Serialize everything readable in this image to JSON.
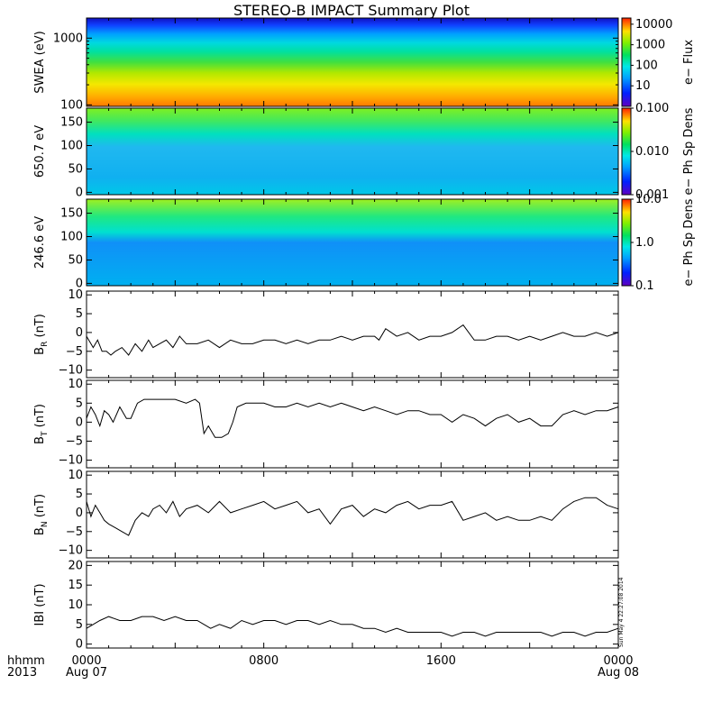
{
  "title": "STEREO-B IMPACT Summary Plot",
  "time_axis": {
    "corner_labels": [
      "hhmm",
      "2013"
    ],
    "ticks": [
      {
        "hhmm": "0000",
        "date": "Aug 07",
        "hour": 0
      },
      {
        "hhmm": "0800",
        "date": "",
        "hour": 8
      },
      {
        "hhmm": "1600",
        "date": "",
        "hour": 16
      },
      {
        "hhmm": "0000",
        "date": "Aug 08",
        "hour": 24
      }
    ],
    "range_hours": [
      0,
      24
    ]
  },
  "timestamp": "Sun May 4 22:27:08 2014",
  "colors": {
    "trace": "#000000",
    "frame": "#000000",
    "background": "#ffffff"
  },
  "chart_data": [
    {
      "type": "heatmap",
      "ylabel": "SWEA (eV)",
      "yscale": "log",
      "ylim": [
        95,
        2000
      ],
      "yticks": [
        {
          "v": 100,
          "label": "100"
        },
        {
          "v": 1000,
          "label": "1000"
        }
      ],
      "colorbar": {
        "label": "e− Flux",
        "scale": "log",
        "range": [
          1,
          20000
        ],
        "ticks": [
          {
            "v": 10,
            "label": "10"
          },
          {
            "v": 100,
            "label": "100"
          },
          {
            "v": 1000,
            "label": "1000"
          },
          {
            "v": 10000,
            "label": "10000"
          }
        ]
      }
    },
    {
      "type": "heatmap",
      "ylabel": "650.7 eV",
      "yscale": "linear",
      "ylim": [
        -5,
        180
      ],
      "yticks": [
        {
          "v": 0,
          "label": "0"
        },
        {
          "v": 50,
          "label": "50"
        },
        {
          "v": 100,
          "label": "100"
        },
        {
          "v": 150,
          "label": "150"
        }
      ],
      "colorbar": {
        "label": "e− Ph Sp Dens",
        "scale": "log",
        "range": [
          0.001,
          0.1
        ],
        "ticks": [
          {
            "v": 0.001,
            "label": "0.001"
          },
          {
            "v": 0.01,
            "label": "0.010"
          },
          {
            "v": 0.1,
            "label": "0.100"
          }
        ]
      }
    },
    {
      "type": "heatmap",
      "ylabel": "246.6 eV",
      "yscale": "linear",
      "ylim": [
        -5,
        180
      ],
      "yticks": [
        {
          "v": 0,
          "label": "0"
        },
        {
          "v": 50,
          "label": "50"
        },
        {
          "v": 100,
          "label": "100"
        },
        {
          "v": 150,
          "label": "150"
        }
      ],
      "colorbar": {
        "label": "e− Ph Sp Dens",
        "scale": "log",
        "range": [
          0.1,
          10
        ],
        "ticks": [
          {
            "v": 0.1,
            "label": "0.1"
          },
          {
            "v": 1,
            "label": "1.0"
          },
          {
            "v": 10,
            "label": "10.0"
          }
        ]
      }
    },
    {
      "type": "line",
      "ylabel_main": "B",
      "ylabel_sub": "R",
      "ylabel_unit": " (nT)",
      "ylim": [
        -12,
        11
      ],
      "yticks": [
        {
          "v": -10,
          "label": "−10"
        },
        {
          "v": -5,
          "label": "−5"
        },
        {
          "v": 0,
          "label": "0"
        },
        {
          "v": 5,
          "label": "5"
        },
        {
          "v": 10,
          "label": "10"
        }
      ],
      "x": [
        0,
        0.3,
        0.5,
        0.7,
        0.9,
        1.1,
        1.3,
        1.6,
        1.9,
        2.2,
        2.5,
        2.8,
        3.0,
        3.3,
        3.6,
        3.9,
        4.2,
        4.5,
        5.0,
        5.5,
        6.0,
        6.5,
        7.0,
        7.5,
        8.0,
        8.5,
        9.0,
        9.5,
        10.0,
        10.5,
        11.0,
        11.5,
        12.0,
        12.5,
        13.0,
        13.2,
        13.5,
        14.0,
        14.5,
        15.0,
        15.5,
        16.0,
        16.5,
        17.0,
        17.5,
        18.0,
        18.5,
        19.0,
        19.5,
        20.0,
        20.5,
        21.0,
        21.5,
        22.0,
        22.5,
        23.0,
        23.5,
        24.0
      ],
      "y": [
        -1,
        -4,
        -2,
        -5,
        -5,
        -6,
        -5,
        -4,
        -6,
        -3,
        -5,
        -2,
        -4,
        -3,
        -2,
        -4,
        -1,
        -3,
        -3,
        -2,
        -4,
        -2,
        -3,
        -3,
        -2,
        -2,
        -3,
        -2,
        -3,
        -2,
        -2,
        -1,
        -2,
        -1,
        -1,
        -2,
        1,
        -1,
        0,
        -2,
        -1,
        -1,
        0,
        2,
        -2,
        -2,
        -1,
        -1,
        -2,
        -1,
        -2,
        -1,
        0,
        -1,
        -1,
        0,
        -1,
        0
      ]
    },
    {
      "type": "line",
      "ylabel_main": "B",
      "ylabel_sub": "T",
      "ylabel_unit": " (nT)",
      "ylim": [
        -12,
        11
      ],
      "yticks": [
        {
          "v": -10,
          "label": "−10"
        },
        {
          "v": -5,
          "label": "−5"
        },
        {
          "v": 0,
          "label": "0"
        },
        {
          "v": 5,
          "label": "5"
        },
        {
          "v": 10,
          "label": "10"
        }
      ],
      "x": [
        0,
        0.2,
        0.4,
        0.6,
        0.8,
        1.0,
        1.2,
        1.5,
        1.8,
        2.0,
        2.3,
        2.6,
        3.0,
        3.5,
        4.0,
        4.5,
        4.9,
        5.1,
        5.3,
        5.5,
        5.8,
        6.1,
        6.4,
        6.6,
        6.8,
        7.2,
        7.6,
        8.0,
        8.5,
        9.0,
        9.5,
        10.0,
        10.5,
        11.0,
        11.5,
        12.0,
        12.5,
        13.0,
        13.5,
        14.0,
        14.5,
        15.0,
        15.5,
        16.0,
        16.5,
        17.0,
        17.5,
        18.0,
        18.5,
        19.0,
        19.5,
        20.0,
        20.5,
        21.0,
        21.5,
        22.0,
        22.5,
        23.0,
        23.5,
        24.0
      ],
      "y": [
        1,
        4,
        2,
        -1,
        3,
        2,
        0,
        4,
        1,
        1,
        5,
        6,
        6,
        6,
        6,
        5,
        6,
        5,
        -3,
        -1,
        -4,
        -4,
        -3,
        0,
        4,
        5,
        5,
        5,
        4,
        4,
        5,
        4,
        5,
        4,
        5,
        4,
        3,
        4,
        3,
        2,
        3,
        3,
        2,
        2,
        0,
        2,
        1,
        -1,
        1,
        2,
        0,
        1,
        -1,
        -1,
        2,
        3,
        2,
        3,
        3,
        4
      ]
    },
    {
      "type": "line",
      "ylabel_main": "B",
      "ylabel_sub": "N",
      "ylabel_unit": " (nT)",
      "ylim": [
        -12,
        11
      ],
      "yticks": [
        {
          "v": -10,
          "label": "−10"
        },
        {
          "v": -5,
          "label": "−5"
        },
        {
          "v": 0,
          "label": "0"
        },
        {
          "v": 5,
          "label": "5"
        },
        {
          "v": 10,
          "label": "10"
        }
      ],
      "x": [
        0,
        0.2,
        0.4,
        0.6,
        0.8,
        1.0,
        1.3,
        1.6,
        1.9,
        2.2,
        2.5,
        2.8,
        3.0,
        3.3,
        3.6,
        3.9,
        4.2,
        4.5,
        5.0,
        5.5,
        6.0,
        6.5,
        7.0,
        7.5,
        8.0,
        8.5,
        9.0,
        9.5,
        10.0,
        10.5,
        11.0,
        11.5,
        12.0,
        12.5,
        13.0,
        13.5,
        14.0,
        14.5,
        15.0,
        15.5,
        16.0,
        16.5,
        17.0,
        17.5,
        18.0,
        18.5,
        19.0,
        19.5,
        20.0,
        20.5,
        21.0,
        21.5,
        22.0,
        22.5,
        23.0,
        23.5,
        24.0
      ],
      "y": [
        3,
        -1,
        2,
        0,
        -2,
        -3,
        -4,
        -5,
        -6,
        -2,
        0,
        -1,
        1,
        2,
        0,
        3,
        -1,
        1,
        2,
        0,
        3,
        0,
        1,
        2,
        3,
        1,
        2,
        3,
        0,
        1,
        -3,
        1,
        2,
        -1,
        1,
        0,
        2,
        3,
        1,
        2,
        2,
        3,
        -2,
        -1,
        0,
        -2,
        -1,
        -2,
        -2,
        -1,
        -2,
        1,
        3,
        4,
        4,
        2,
        1
      ]
    },
    {
      "type": "line",
      "ylabel": "IBI (nT)",
      "ylim": [
        -1,
        21
      ],
      "yticks": [
        {
          "v": 0,
          "label": "0"
        },
        {
          "v": 5,
          "label": "5"
        },
        {
          "v": 10,
          "label": "10"
        },
        {
          "v": 15,
          "label": "15"
        },
        {
          "v": 20,
          "label": "20"
        }
      ],
      "x": [
        0,
        0.3,
        0.6,
        1.0,
        1.5,
        2.0,
        2.5,
        3.0,
        3.5,
        4.0,
        4.5,
        5.0,
        5.3,
        5.6,
        6.0,
        6.5,
        7.0,
        7.5,
        8.0,
        8.5,
        9.0,
        9.5,
        10.0,
        10.5,
        11.0,
        11.5,
        12.0,
        12.5,
        13.0,
        13.5,
        14.0,
        14.5,
        15.0,
        15.5,
        16.0,
        16.5,
        17.0,
        17.5,
        18.0,
        18.5,
        19.0,
        19.5,
        20.0,
        20.5,
        21.0,
        21.5,
        22.0,
        22.5,
        23.0,
        23.5,
        24.0
      ],
      "y": [
        4,
        5,
        6,
        7,
        6,
        6,
        7,
        7,
        6,
        7,
        6,
        6,
        5,
        4,
        5,
        4,
        6,
        5,
        6,
        6,
        5,
        6,
        6,
        5,
        6,
        5,
        5,
        4,
        4,
        3,
        4,
        3,
        3,
        3,
        3,
        2,
        3,
        3,
        2,
        3,
        3,
        3,
        3,
        3,
        2,
        3,
        3,
        2,
        3,
        3,
        4
      ]
    }
  ]
}
